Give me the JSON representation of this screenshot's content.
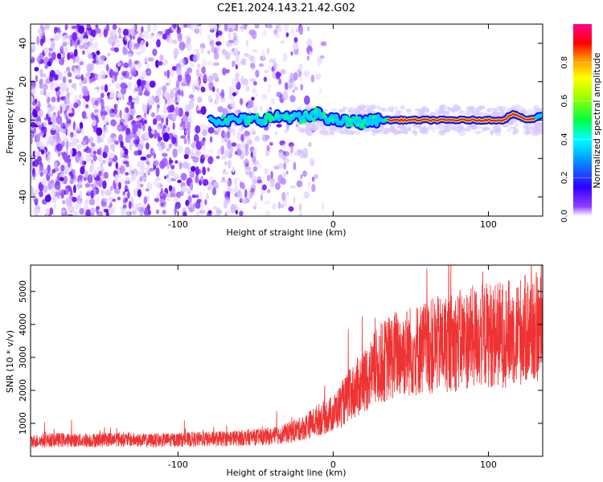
{
  "title": "C2E1.2024.143.21.42.G02",
  "chart_data": [
    {
      "type": "heatmap",
      "xlabel": "Height of straight line (km)",
      "ylabel": "Frequency (Hz)",
      "xlim": [
        -195,
        135
      ],
      "ylim": [
        -50,
        50
      ],
      "xticks": [
        -100,
        0,
        100
      ],
      "yticks": [
        -40,
        -20,
        0,
        20,
        40
      ],
      "colorbar": {
        "label": "Normalized spectral amplitude",
        "range": [
          0,
          1
        ],
        "ticks": [
          0.0,
          0.2,
          0.4,
          0.6,
          0.8
        ],
        "colormap": [
          "#ff00ff",
          "#ff0000",
          "#ffff00",
          "#00ff00",
          "#00ffff",
          "#0000ff",
          "#8800ff",
          "#ffffff"
        ]
      },
      "ridge": {
        "description_points_x": [
          -80,
          -70,
          -60,
          -50,
          -40,
          -30,
          -20,
          -10,
          0,
          10,
          20,
          30,
          40,
          60,
          80,
          100,
          110,
          115,
          120,
          125,
          130,
          135
        ],
        "frequency_y": [
          0,
          0,
          0,
          0,
          1,
          2,
          1,
          3,
          0,
          -1,
          -1,
          0,
          0,
          0,
          0,
          0,
          0,
          3,
          2,
          0,
          1,
          3
        ]
      },
      "grid": false
    },
    {
      "type": "line",
      "xlabel": "Height of straight line (km)",
      "ylabel": "SNR (10 * v/v)",
      "xlim": [
        -195,
        135
      ],
      "ylim": [
        0,
        5800
      ],
      "xticks": [
        -100,
        0,
        100
      ],
      "yticks": [
        1000,
        2000,
        3000,
        4000,
        5000
      ],
      "series": [
        {
          "color": "#ef3232",
          "x": [
            -195,
            -180,
            -160,
            -140,
            -120,
            -100,
            -80,
            -60,
            -40,
            -30,
            -20,
            -10,
            0,
            10,
            20,
            30,
            40,
            60,
            80,
            100,
            110,
            120,
            130,
            135
          ],
          "y": [
            450,
            500,
            480,
            520,
            480,
            500,
            520,
            560,
            600,
            700,
            850,
            1100,
            1300,
            1800,
            2300,
            2800,
            3100,
            3300,
            3500,
            3700,
            3700,
            3800,
            3900,
            3800
          ]
        }
      ],
      "grid": false
    }
  ]
}
